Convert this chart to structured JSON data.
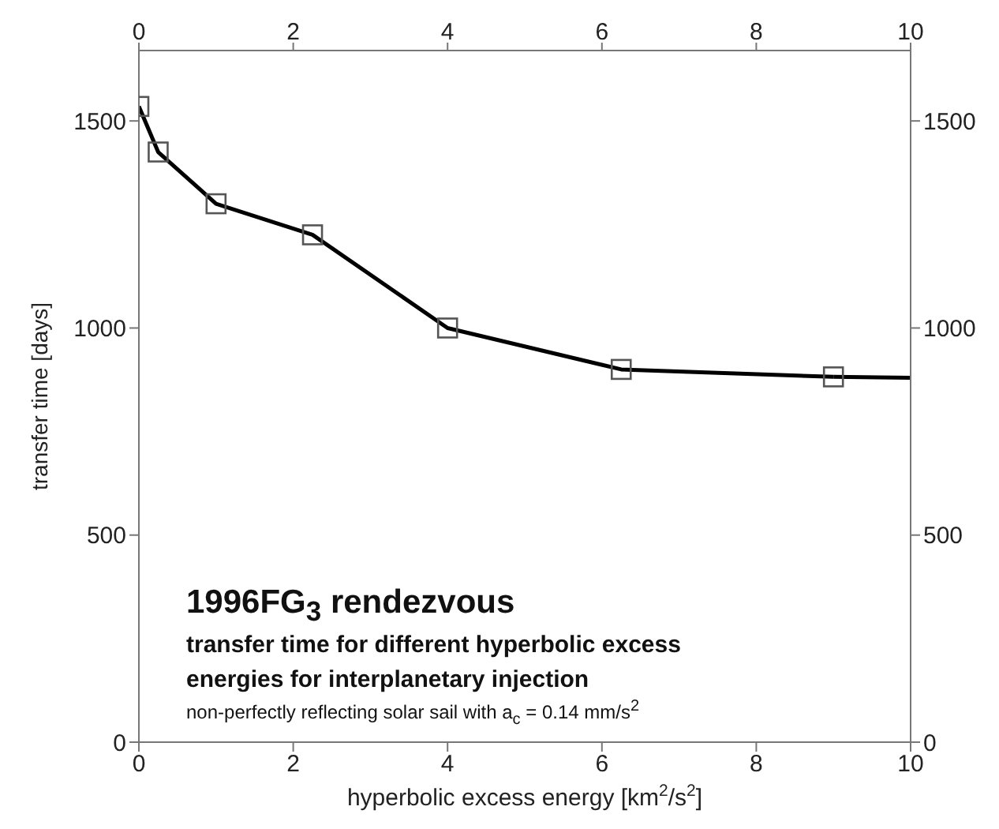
{
  "chart_data": {
    "type": "line",
    "xlabel": "hyperbolic excess energy [km$^{2}$/s$^{2}$]",
    "ylabel": "transfer time [days]",
    "x": [
      0,
      0.25,
      1,
      2.25,
      4,
      6.25,
      9
    ],
    "series": [
      {
        "color": "#000000",
        "values": [
          1535,
          1425,
          1300,
          1225,
          1000,
          900,
          882
        ],
        "marker": "square"
      },
      {
        "color": "#000000",
        "x": [
          9,
          10
        ],
        "values": [
          882,
          880
        ],
        "marker": "none"
      }
    ],
    "xlim": [
      0,
      10
    ],
    "xticks": [
      0,
      2,
      4,
      6,
      8,
      10
    ],
    "x2lim": [
      0,
      10
    ],
    "x2ticks": [
      0,
      2,
      4,
      6,
      8,
      10
    ],
    "ylim": [
      0,
      1670
    ],
    "yticks": [
      0,
      500,
      1000,
      1500
    ],
    "y2lim": [
      0,
      1670
    ],
    "y2ticks": [
      0,
      500,
      1000,
      1500
    ],
    "line_style": "solid",
    "annotations": [
      "1996FG$_{3}$ rendezvous",
      "transfer time for different hyperbolic excess energies for interplanetary injection",
      "non-perfectly reflecting solar sail with a$_{c}$ = 0.14 mm/s$^{2}$"
    ]
  }
}
